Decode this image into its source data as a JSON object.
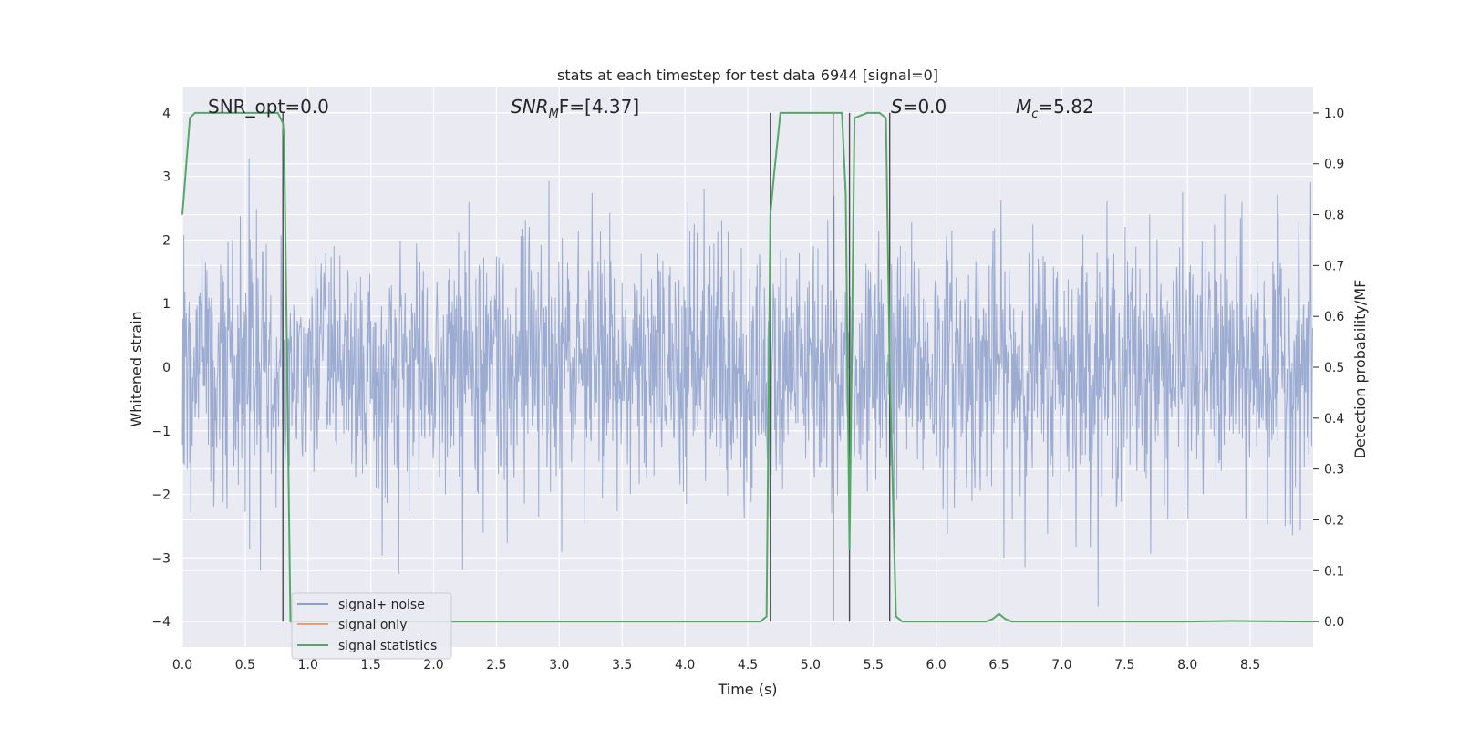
{
  "chart_data": {
    "type": "line",
    "title": "stats at each timestep for test data 6944 [signal=0]",
    "xlabel": "Time (s)",
    "ylabel": "Whitened strain",
    "y2label": "Detection probability/MF",
    "xlim": [
      0.0,
      9.0
    ],
    "ylim": [
      -4.4,
      4.4
    ],
    "y2lim": [
      -0.05,
      1.05
    ],
    "xticks": [
      "0.0",
      "0.5",
      "1.0",
      "1.5",
      "2.0",
      "2.5",
      "3.0",
      "3.5",
      "4.0",
      "4.5",
      "5.0",
      "5.5",
      "6.0",
      "6.5",
      "7.0",
      "7.5",
      "8.0",
      "8.5"
    ],
    "xtick_values": [
      0.0,
      0.5,
      1.0,
      1.5,
      2.0,
      2.5,
      3.0,
      3.5,
      4.0,
      4.5,
      5.0,
      5.5,
      6.0,
      6.5,
      7.0,
      7.5,
      8.0,
      8.5
    ],
    "yticks": [
      "−4",
      "−3",
      "−2",
      "−1",
      "0",
      "1",
      "2",
      "3",
      "4"
    ],
    "ytick_values": [
      -4,
      -3,
      -2,
      -1,
      0,
      1,
      2,
      3,
      4
    ],
    "y2ticks": [
      "0.0",
      "0.1",
      "0.2",
      "0.3",
      "0.4",
      "0.5",
      "0.6",
      "0.7",
      "0.8",
      "0.9",
      "1.0"
    ],
    "y2tick_values": [
      0.0,
      0.1,
      0.2,
      0.3,
      0.4,
      0.5,
      0.6,
      0.7,
      0.8,
      0.9,
      1.0
    ],
    "grid": true,
    "legend_position": "lower-left",
    "annotations": {
      "snr_opt": "SNR_opt=0.0",
      "snr_mf_main": "SNR",
      "snr_mf_sub": "M",
      "snr_mf_rest": "F=[4.37]",
      "s_main": "S",
      "s_rest": "=0.0",
      "mc_main": "M",
      "mc_sub": "c",
      "mc_rest": "=5.82"
    },
    "series": [
      {
        "name": "signal+ noise",
        "color": "#8da0cb",
        "description_axis": "left",
        "noise_std": 1.0,
        "sample_rate_hz": 256,
        "duration_s": 9.0
      },
      {
        "name": "signal only",
        "color": "#e5a07a",
        "description_axis": "left",
        "values": []
      },
      {
        "name": "signal statistics",
        "color": "#55a868",
        "description_axis": "right",
        "x": [
          0.0,
          0.06,
          0.1,
          0.2,
          0.3,
          0.4,
          0.5,
          0.6,
          0.7,
          0.76,
          0.8,
          0.81,
          0.86,
          0.9,
          1.0,
          1.5,
          2.0,
          2.5,
          3.0,
          3.5,
          4.0,
          4.5,
          4.6,
          4.65,
          4.68,
          4.71,
          4.76,
          5.0,
          5.15,
          5.2,
          5.25,
          5.28,
          5.31,
          5.35,
          5.45,
          5.55,
          5.6,
          5.63,
          5.68,
          5.73,
          5.8,
          6.0,
          6.3,
          6.4,
          6.45,
          6.5,
          6.55,
          6.6,
          7.0,
          8.0,
          8.35,
          9.0
        ],
        "y": [
          0.8,
          0.99,
          1.0,
          1.0,
          1.0,
          1.0,
          1.0,
          1.0,
          1.0,
          1.0,
          0.98,
          0.95,
          0.0,
          0.0,
          0.0,
          0.0,
          0.0,
          0.0,
          0.0,
          0.0,
          0.0,
          0.0,
          0.0,
          0.01,
          0.8,
          0.88,
          1.0,
          1.0,
          1.0,
          1.0,
          1.0,
          0.84,
          0.14,
          0.99,
          1.0,
          1.0,
          0.99,
          0.5,
          0.01,
          0.0,
          0.0,
          0.0,
          0.0,
          0.0,
          0.005,
          0.015,
          0.005,
          0.0,
          0.0,
          0.0,
          0.001,
          0.0
        ]
      }
    ],
    "vlines_x": [
      0.8,
      4.68,
      5.18,
      5.31,
      5.63
    ],
    "vline_color": "#4c4c4c"
  }
}
